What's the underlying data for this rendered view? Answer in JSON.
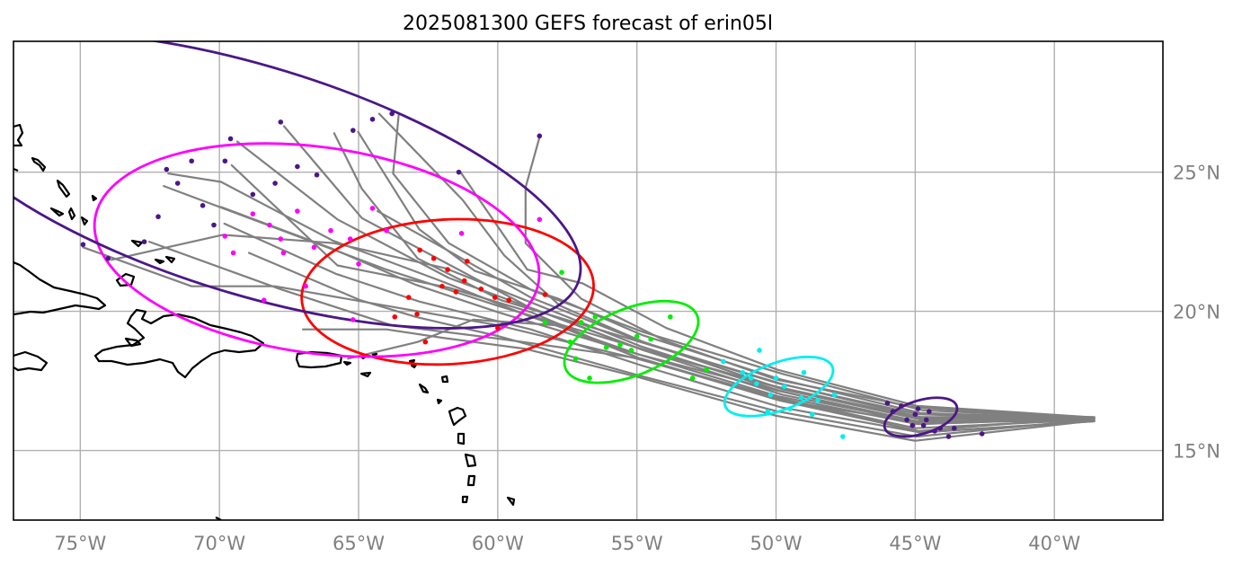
{
  "title": "2025081300 GEFS forecast of erin05l",
  "axes": {
    "lon_range": [
      -77.4,
      -36.1
    ],
    "lat_range": [
      12.5,
      29.7
    ],
    "x_ticks": [
      {
        "value": -75,
        "label": "75°W"
      },
      {
        "value": -70,
        "label": "70°W"
      },
      {
        "value": -65,
        "label": "65°W"
      },
      {
        "value": -60,
        "label": "60°W"
      },
      {
        "value": -55,
        "label": "55°W"
      },
      {
        "value": -50,
        "label": "50°W"
      },
      {
        "value": -45,
        "label": "45°W"
      },
      {
        "value": -40,
        "label": "40°W"
      }
    ],
    "y_ticks": [
      {
        "value": 15,
        "label": "15°N"
      },
      {
        "value": 20,
        "label": "20°N"
      },
      {
        "value": 25,
        "label": "25°N"
      }
    ],
    "grid": true
  },
  "colors": {
    "track": "#808080",
    "coast": "#000000",
    "gridline": "#b0b0b0",
    "tick": "#808080",
    "day5": "#4b1787",
    "day4": "#ff00ff",
    "day3": "#ff0000",
    "day2": "#00ee00",
    "day1": "#00eeee",
    "day0": "#4b1787"
  },
  "chart_data": {
    "type": "scatter",
    "ellipses": [
      {
        "color": "#4b1787",
        "center": [
          -44.8,
          16.2
        ],
        "rx_deg": 1.35,
        "ry_deg": 0.6,
        "angle_deg": 17
      },
      {
        "color": "#00eeee",
        "center": [
          -49.9,
          17.3
        ],
        "rx_deg": 2.05,
        "ry_deg": 0.85,
        "angle_deg": 20
      },
      {
        "color": "#00ee00",
        "center": [
          -55.2,
          18.9
        ],
        "rx_deg": 2.55,
        "ry_deg": 1.2,
        "angle_deg": 22
      },
      {
        "color": "#ff0000",
        "center": [
          -61.8,
          20.7
        ],
        "rx_deg": 5.25,
        "ry_deg": 2.6,
        "angle_deg": 3
      },
      {
        "color": "#ff00ff",
        "center": [
          -66.5,
          22.2
        ],
        "rx_deg": 8.05,
        "ry_deg": 3.7,
        "angle_deg": -8
      },
      {
        "color": "#4b1787",
        "center": [
          -68.8,
          24.7
        ],
        "rx_deg": 12.25,
        "ry_deg": 4.1,
        "angle_deg": -17
      }
    ],
    "points": [
      {
        "color": "#4b1787",
        "xy": [
          [
            -46.0,
            16.7
          ],
          [
            -45.5,
            16.6
          ],
          [
            -45.0,
            16.3
          ],
          [
            -44.6,
            16.1
          ],
          [
            -44.3,
            15.7
          ],
          [
            -43.8,
            15.5
          ],
          [
            -44.9,
            16.5
          ],
          [
            -45.3,
            16.1
          ],
          [
            -44.5,
            16.4
          ],
          [
            -43.6,
            15.8
          ],
          [
            -45.8,
            16.4
          ],
          [
            -44.1,
            15.8
          ],
          [
            -42.6,
            15.6
          ],
          [
            -44.7,
            15.9
          ],
          [
            -45.1,
            15.9
          ]
        ]
      },
      {
        "color": "#00eeee",
        "xy": [
          [
            -51.2,
            17.8
          ],
          [
            -50.7,
            17.4
          ],
          [
            -50.2,
            17.0
          ],
          [
            -49.7,
            17.3
          ],
          [
            -49.1,
            16.9
          ],
          [
            -48.5,
            16.8
          ],
          [
            -50.9,
            17.6
          ],
          [
            -50.6,
            18.6
          ],
          [
            -49.0,
            17.8
          ],
          [
            -47.6,
            15.5
          ],
          [
            -50.3,
            16.4
          ],
          [
            -48.7,
            16.3
          ],
          [
            -51.9,
            18.2
          ],
          [
            -49.5,
            16.5
          ],
          [
            -47.9,
            17.0
          ],
          [
            -50.0,
            17.6
          ]
        ]
      },
      {
        "color": "#00ee00",
        "xy": [
          [
            -57.7,
            21.4
          ],
          [
            -57.4,
            18.9
          ],
          [
            -56.7,
            17.6
          ],
          [
            -56.1,
            18.7
          ],
          [
            -55.6,
            18.8
          ],
          [
            -55.0,
            19.1
          ],
          [
            -54.5,
            19.0
          ],
          [
            -53.8,
            19.8
          ],
          [
            -53.0,
            17.6
          ],
          [
            -52.5,
            17.9
          ],
          [
            -56.5,
            19.8
          ],
          [
            -57.0,
            19.6
          ],
          [
            -55.2,
            18.6
          ],
          [
            -58.3,
            19.6
          ],
          [
            -57.2,
            18.3
          ]
        ]
      },
      {
        "color": "#ff0000",
        "xy": [
          [
            -63.2,
            20.5
          ],
          [
            -62.8,
            22.2
          ],
          [
            -62.3,
            21.9
          ],
          [
            -61.8,
            21.5
          ],
          [
            -61.2,
            21.1
          ],
          [
            -60.6,
            20.8
          ],
          [
            -60.1,
            20.5
          ],
          [
            -59.6,
            20.4
          ],
          [
            -62.9,
            19.9
          ],
          [
            -62.0,
            20.9
          ],
          [
            -63.7,
            19.8
          ],
          [
            -62.6,
            18.9
          ],
          [
            -61.5,
            20.7
          ],
          [
            -60.0,
            19.4
          ],
          [
            -58.3,
            20.6
          ],
          [
            -61.1,
            21.8
          ]
        ]
      },
      {
        "color": "#ff00ff",
        "xy": [
          [
            -69.8,
            22.7
          ],
          [
            -68.8,
            23.5
          ],
          [
            -67.8,
            22.6
          ],
          [
            -67.2,
            23.6
          ],
          [
            -66.6,
            22.3
          ],
          [
            -66.0,
            22.9
          ],
          [
            -65.3,
            22.6
          ],
          [
            -64.5,
            23.7
          ],
          [
            -64.0,
            22.9
          ],
          [
            -68.2,
            23.1
          ],
          [
            -66.9,
            20.9
          ],
          [
            -65.2,
            19.7
          ],
          [
            -68.4,
            20.4
          ],
          [
            -65.0,
            21.7
          ],
          [
            -69.5,
            22.1
          ],
          [
            -58.5,
            23.3
          ],
          [
            -61.3,
            22.8
          ],
          [
            -67.7,
            22.1
          ]
        ]
      },
      {
        "color": "#4b1787",
        "xy": [
          [
            -74.9,
            22.4
          ],
          [
            -74.0,
            21.9
          ],
          [
            -72.7,
            22.5
          ],
          [
            -72.2,
            23.4
          ],
          [
            -71.9,
            25.1
          ],
          [
            -71.5,
            24.6
          ],
          [
            -71.0,
            25.4
          ],
          [
            -70.6,
            23.8
          ],
          [
            -70.2,
            23.1
          ],
          [
            -69.8,
            25.4
          ],
          [
            -69.6,
            26.2
          ],
          [
            -68.8,
            24.2
          ],
          [
            -68.0,
            24.6
          ],
          [
            -67.8,
            26.8
          ],
          [
            -67.2,
            25.2
          ],
          [
            -66.5,
            24.9
          ],
          [
            -65.2,
            26.5
          ],
          [
            -64.5,
            26.9
          ],
          [
            -63.8,
            27.1
          ],
          [
            -61.4,
            25.0
          ],
          [
            -58.5,
            26.3
          ]
        ]
      }
    ]
  }
}
